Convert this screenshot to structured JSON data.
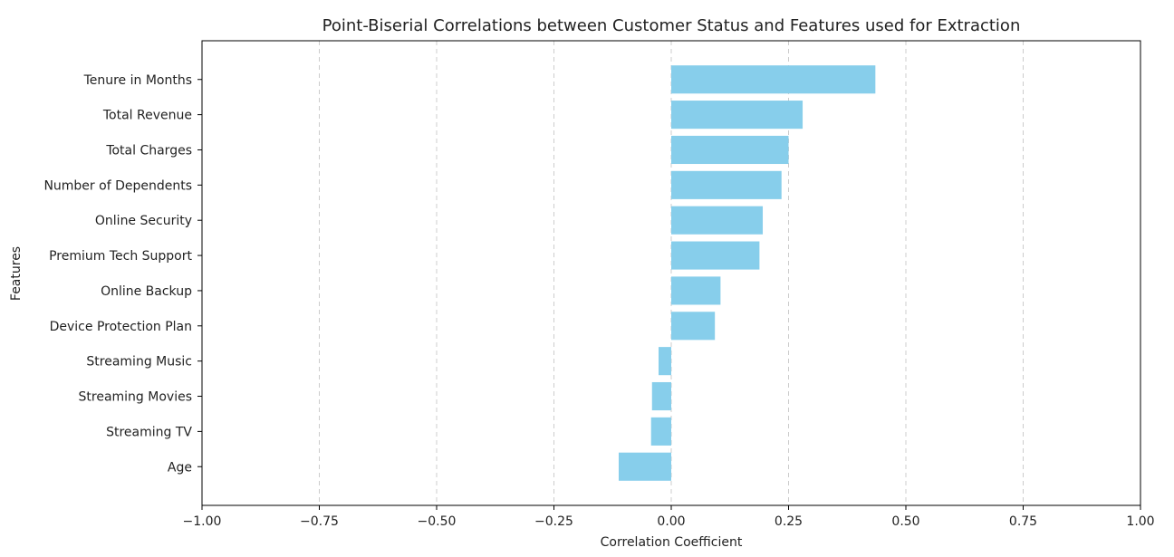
{
  "chart_data": {
    "type": "bar",
    "orientation": "horizontal",
    "title": "Point-Biserial Correlations between Customer Status and Features used for Extraction",
    "xlabel": "Correlation Coefficient",
    "ylabel": "Features",
    "xlim": [
      -1.0,
      1.0
    ],
    "xticks": [
      -1.0,
      -0.75,
      -0.5,
      -0.25,
      0.0,
      0.25,
      0.5,
      0.75,
      1.0
    ],
    "xtick_labels": [
      "−1.00",
      "−0.75",
      "−0.50",
      "−0.25",
      "0.00",
      "0.25",
      "0.50",
      "0.75",
      "1.00"
    ],
    "grid": "x-dashed",
    "bar_color": "#87ceeb",
    "categories": [
      "Tenure in Months",
      "Total Revenue",
      "Total Charges",
      "Number of Dependents",
      "Online Security",
      "Premium Tech Support",
      "Online Backup",
      "Device Protection Plan",
      "Streaming Music",
      "Streaming Movies",
      "Streaming TV",
      "Age"
    ],
    "values": [
      0.435,
      0.28,
      0.25,
      0.235,
      0.195,
      0.188,
      0.105,
      0.093,
      -0.027,
      -0.041,
      -0.043,
      -0.112
    ]
  }
}
